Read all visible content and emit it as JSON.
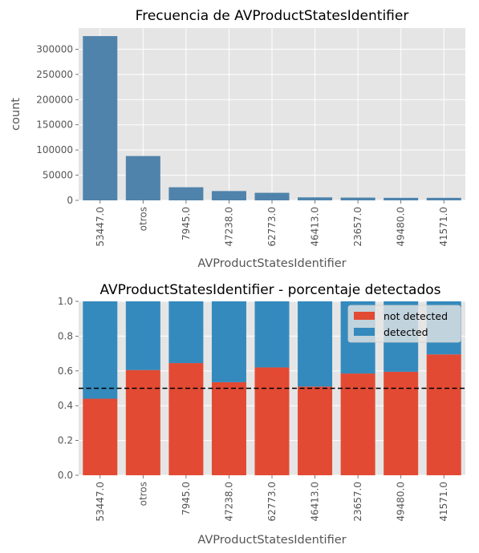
{
  "chart_data": [
    {
      "type": "bar",
      "title": "Frecuencia de AVProductStatesIdentifier",
      "xlabel": "AVProductStatesIdentifier",
      "ylabel": "count",
      "categories": [
        "53447.0",
        "otros",
        "7945.0",
        "47238.0",
        "62773.0",
        "46413.0",
        "23657.0",
        "49480.0",
        "41571.0"
      ],
      "values": [
        326000,
        88000,
        26000,
        18500,
        15000,
        6000,
        5500,
        5000,
        5000
      ],
      "ylim": [
        0,
        342000
      ],
      "yticks": [
        0,
        50000,
        100000,
        150000,
        200000,
        250000,
        300000
      ],
      "ytick_labels": [
        "0",
        "50000",
        "100000",
        "150000",
        "200000",
        "250000",
        "300000"
      ],
      "bar_color": "#4f83ac",
      "grid": true
    },
    {
      "type": "bar",
      "stacked": true,
      "title": "AVProductStatesIdentifier - porcentaje detectados",
      "xlabel": "AVProductStatesIdentifier",
      "ylabel": "",
      "categories": [
        "53447.0",
        "otros",
        "7945.0",
        "47238.0",
        "62773.0",
        "46413.0",
        "23657.0",
        "49480.0",
        "41571.0"
      ],
      "series": [
        {
          "name": "not detected",
          "color": "#e24a33",
          "values": [
            0.44,
            0.605,
            0.645,
            0.535,
            0.62,
            0.51,
            0.585,
            0.595,
            0.695
          ]
        },
        {
          "name": "detected",
          "color": "#348abd",
          "values": [
            0.56,
            0.395,
            0.355,
            0.465,
            0.38,
            0.49,
            0.415,
            0.405,
            0.305
          ]
        }
      ],
      "ylim": [
        0,
        1
      ],
      "yticks": [
        0,
        0.2,
        0.4,
        0.6,
        0.8,
        1.0
      ],
      "ytick_labels": [
        "0.0",
        "0.2",
        "0.4",
        "0.6",
        "0.8",
        "1.0"
      ],
      "reference_line": {
        "y": 0.5,
        "style": "dashed",
        "color": "#000000"
      },
      "legend": "top-right",
      "grid": true
    }
  ]
}
